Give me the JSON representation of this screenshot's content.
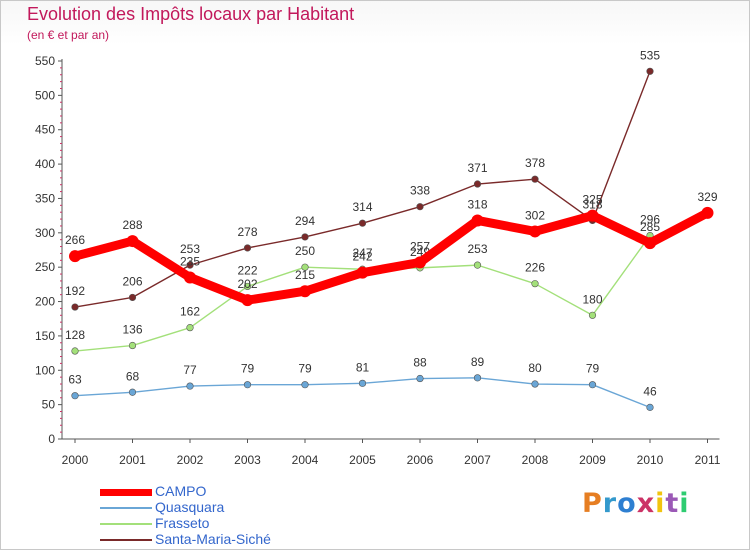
{
  "title": "Evolution des Impôts locaux par Habitant",
  "subtitle": "(en € et par an)",
  "logo": {
    "text": "Proxiti",
    "colors": [
      "#e67e22",
      "#3399cc",
      "#2e7fd1",
      "#cc3366",
      "#f1c40f",
      "#9b59b6",
      "#2ecc71"
    ]
  },
  "chart_data": {
    "type": "line",
    "title": "Evolution des Impôts locaux par Habitant",
    "subtitle": "(en € et par an)",
    "x": [
      "2000",
      "2001",
      "2002",
      "2003",
      "2004",
      "2005",
      "2006",
      "2007",
      "2008",
      "2009",
      "2010",
      "2011"
    ],
    "ylim": [
      0,
      550
    ],
    "yticks": [
      0,
      50,
      100,
      150,
      200,
      250,
      300,
      350,
      400,
      450,
      500,
      550
    ],
    "grid": false,
    "legend_position": "bottom-left",
    "series": [
      {
        "name": "CAMPO",
        "color": "#ff0000",
        "values": [
          266,
          288,
          235,
          202,
          215,
          242,
          257,
          318,
          302,
          325,
          285,
          329
        ]
      },
      {
        "name": "Quasquara",
        "color": "#6aa6d6",
        "values": [
          63,
          68,
          77,
          79,
          79,
          81,
          88,
          89,
          80,
          79,
          46,
          null
        ]
      },
      {
        "name": "Frasseto",
        "color": "#a3e07a",
        "values": [
          128,
          136,
          162,
          222,
          250,
          247,
          249,
          253,
          226,
          180,
          296,
          null
        ]
      },
      {
        "name": "Santa-Maria-Siché",
        "color": "#7a2a2a",
        "values": [
          192,
          206,
          253,
          278,
          294,
          314,
          338,
          371,
          378,
          318,
          535,
          null
        ]
      }
    ]
  }
}
